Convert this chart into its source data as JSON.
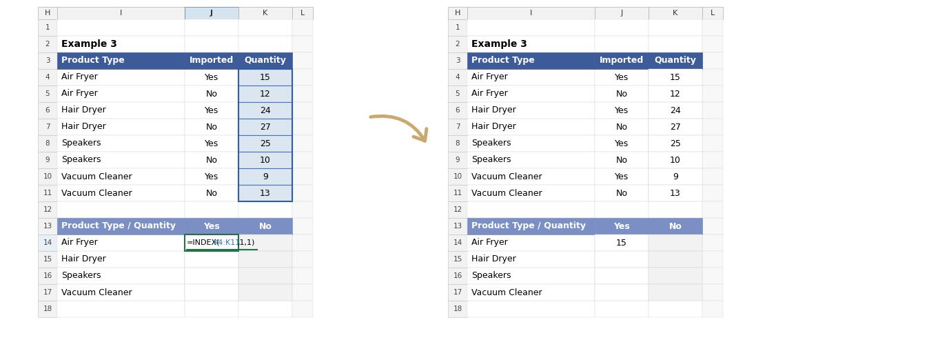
{
  "header_color": "#3D5A99",
  "header_text_color": "#FFFFFF",
  "subheader_color": "#7B8FC4",
  "cell_bg_white": "#FFFFFF",
  "cell_bg_light_blue": "#DCE6F1",
  "cell_bg_gray": "#F2F2F2",
  "arrow_color": "#C9A96E",
  "ref_color": "#2E75B6",
  "green_border": "#217346",
  "green_underline": "#217346",
  "row_numbers": [
    "1",
    "2",
    "3",
    "4",
    "5",
    "6",
    "7",
    "8",
    "9",
    "10",
    "11",
    "12",
    "13",
    "14",
    "15",
    "16",
    "17",
    "18"
  ],
  "col_labels": [
    "H",
    "I",
    "J",
    "K",
    "L"
  ],
  "main_table_data": [
    [
      "Air Fryer",
      "Yes",
      "15"
    ],
    [
      "Air Fryer",
      "No",
      "12"
    ],
    [
      "Hair Dryer",
      "Yes",
      "24"
    ],
    [
      "Hair Dryer",
      "No",
      "27"
    ],
    [
      "Speakers",
      "Yes",
      "25"
    ],
    [
      "Speakers",
      "No",
      "10"
    ],
    [
      "Vacuum Cleaner",
      "Yes",
      "9"
    ],
    [
      "Vacuum Cleaner",
      "No",
      "13"
    ]
  ],
  "summary_rows": [
    "Air Fryer",
    "Hair Dryer",
    "Speakers",
    "Vacuum Cleaner"
  ]
}
